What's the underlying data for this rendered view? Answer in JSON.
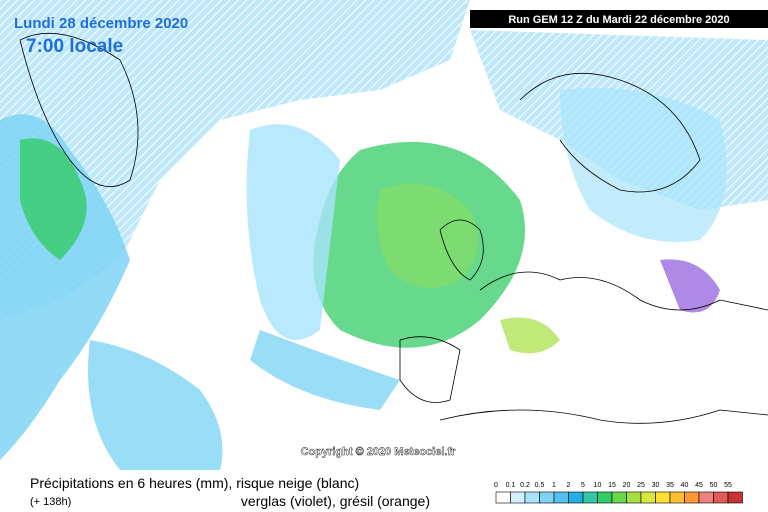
{
  "header": {
    "date": "Lundi 28 décembre 2020",
    "time": "7:00 locale",
    "run": "Run GEM 12 Z du Mardi 22 décembre 2020"
  },
  "copyright": "Copyright © 2020 Meteociel.fr",
  "legend": {
    "line1": "Précipitations en 6 heures (mm), risque neige (blanc)",
    "offset": "(+ 138h)",
    "line2": "verglas (violet), grésil (orange)",
    "scale": {
      "labels": [
        "0",
        "0.1",
        "0.2",
        "0.5",
        "1",
        "2",
        "5",
        "10",
        "15",
        "20",
        "25",
        "30",
        "35",
        "40",
        "45",
        "50",
        "55"
      ],
      "colors": [
        "#ffffff",
        "#d2f0ff",
        "#a8e4fb",
        "#7fd4f5",
        "#4fc3ee",
        "#22b0e0",
        "#33c7a8",
        "#33cc66",
        "#66d94d",
        "#a6e040",
        "#d9e640",
        "#ffe033",
        "#ffbf33",
        "#ff9933",
        "#f07f7f",
        "#e05a5a",
        "#c83232"
      ]
    }
  }
}
